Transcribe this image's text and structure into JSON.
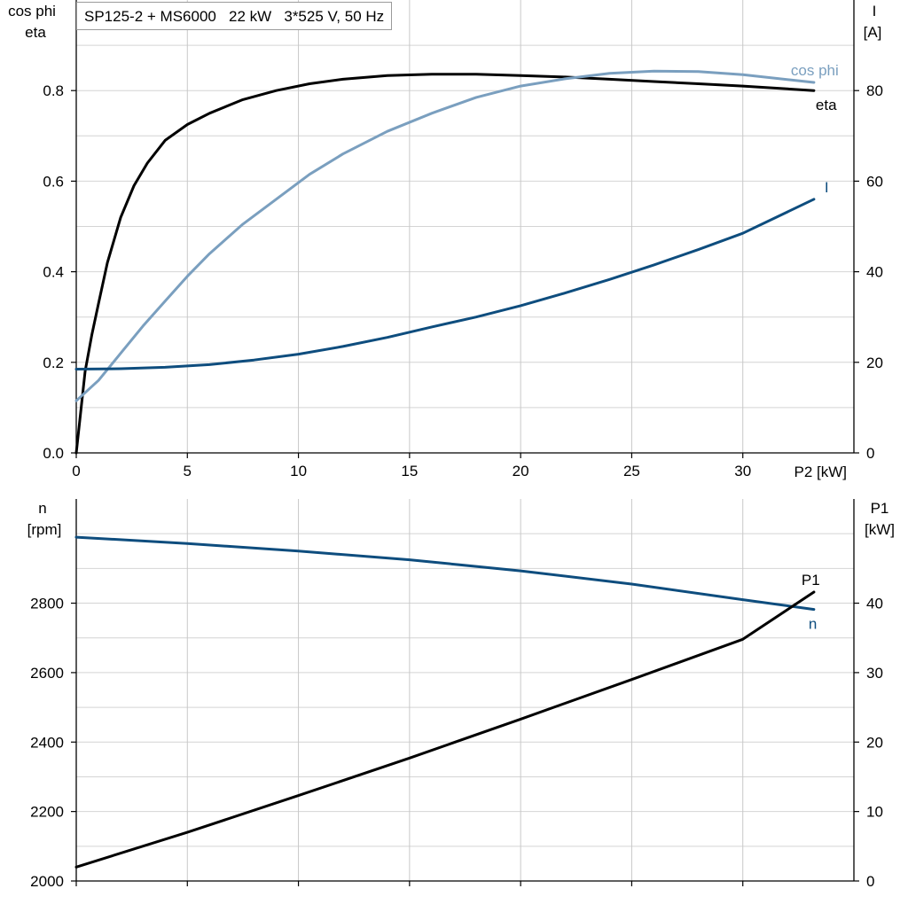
{
  "title": "SP125-2 + MS6000   22 kW   3*525 V, 50 Hz",
  "chart_data": [
    {
      "type": "line",
      "xlabel": "P2 [kW]",
      "xlim": [
        0,
        35
      ],
      "xticks": [
        0,
        5,
        10,
        15,
        20,
        25,
        30
      ],
      "y_left": {
        "label_lines": [
          "cos phi",
          "eta"
        ],
        "lim": [
          0,
          1.0
        ],
        "ticks": [
          0.0,
          0.2,
          0.4,
          0.6,
          0.8
        ],
        "tick_labels": [
          "0.0",
          "0.2",
          "0.4",
          "0.6",
          "0.8"
        ]
      },
      "y_right": {
        "label_lines": [
          "I",
          "[A]"
        ],
        "lim": [
          0,
          100
        ],
        "ticks": [
          0,
          20,
          40,
          60,
          80
        ],
        "tick_labels": [
          "0",
          "20",
          "40",
          "60",
          "80"
        ]
      },
      "grid": true,
      "series": [
        {
          "name": "eta",
          "axis": "left",
          "color": "#000000",
          "x": [
            0,
            0.4,
            0.7,
            1.0,
            1.4,
            2.0,
            2.6,
            3.2,
            4.0,
            5.0,
            6.0,
            7.5,
            9.0,
            10.5,
            12.0,
            14.0,
            16.0,
            18.0,
            20.0,
            22.0,
            24.0,
            26.0,
            28.0,
            30.0,
            33.2
          ],
          "y": [
            0.0,
            0.18,
            0.26,
            0.33,
            0.42,
            0.52,
            0.59,
            0.64,
            0.69,
            0.725,
            0.75,
            0.78,
            0.8,
            0.815,
            0.825,
            0.833,
            0.836,
            0.836,
            0.833,
            0.83,
            0.825,
            0.82,
            0.815,
            0.81,
            0.8
          ]
        },
        {
          "name": "cos phi",
          "axis": "left",
          "color": "#7a9fbf",
          "x": [
            0,
            1.0,
            2.0,
            3.0,
            4.0,
            5.0,
            6.0,
            7.5,
            9.0,
            10.5,
            12.0,
            14.0,
            16.0,
            18.0,
            20.0,
            22.0,
            24.0,
            26.0,
            28.0,
            30.0,
            33.2
          ],
          "y": [
            0.115,
            0.16,
            0.22,
            0.28,
            0.335,
            0.39,
            0.44,
            0.505,
            0.56,
            0.615,
            0.66,
            0.71,
            0.75,
            0.785,
            0.81,
            0.826,
            0.838,
            0.843,
            0.842,
            0.835,
            0.818
          ]
        },
        {
          "name": "I",
          "axis": "right",
          "color": "#0e4d7e",
          "x": [
            0,
            2,
            4,
            6,
            8,
            10,
            12,
            14,
            16,
            18,
            20,
            22,
            24,
            26,
            28,
            30,
            33.2
          ],
          "y": [
            18.5,
            18.6,
            18.9,
            19.5,
            20.5,
            21.8,
            23.5,
            25.5,
            27.8,
            30.0,
            32.5,
            35.3,
            38.3,
            41.5,
            44.9,
            48.5,
            56.0
          ]
        }
      ],
      "series_labels": {
        "eta": "eta",
        "cos phi": "cos phi",
        "I": "I"
      }
    },
    {
      "type": "line",
      "xlim": [
        0,
        35
      ],
      "xticks": [
        0,
        5,
        10,
        15,
        20,
        25,
        30
      ],
      "y_left": {
        "label_lines": [
          "n",
          "[rpm]"
        ],
        "lim": [
          2000,
          3100
        ],
        "ticks": [
          2000,
          2200,
          2400,
          2600,
          2800
        ],
        "tick_labels": [
          "2000",
          "2200",
          "2400",
          "2600",
          "2800"
        ]
      },
      "y_right": {
        "label_lines": [
          "P1",
          "[kW]"
        ],
        "lim": [
          0,
          55
        ],
        "ticks": [
          0,
          10,
          20,
          30,
          40
        ],
        "tick_labels": [
          "0",
          "10",
          "20",
          "30",
          "40"
        ]
      },
      "grid": true,
      "series": [
        {
          "name": "n",
          "axis": "left",
          "color": "#0e4d7e",
          "x": [
            0,
            5,
            10,
            15,
            20,
            25,
            30,
            33.2
          ],
          "y": [
            2990,
            2972,
            2950,
            2925,
            2893,
            2855,
            2810,
            2782
          ]
        },
        {
          "name": "P1",
          "axis": "right",
          "color": "#000000",
          "x": [
            0,
            5,
            10,
            15,
            20,
            25,
            30,
            33.2
          ],
          "y": [
            2.0,
            7.0,
            12.3,
            17.7,
            23.3,
            29.0,
            34.8,
            41.6
          ]
        }
      ],
      "series_labels": {
        "n": "n",
        "P1": "P1"
      }
    }
  ]
}
